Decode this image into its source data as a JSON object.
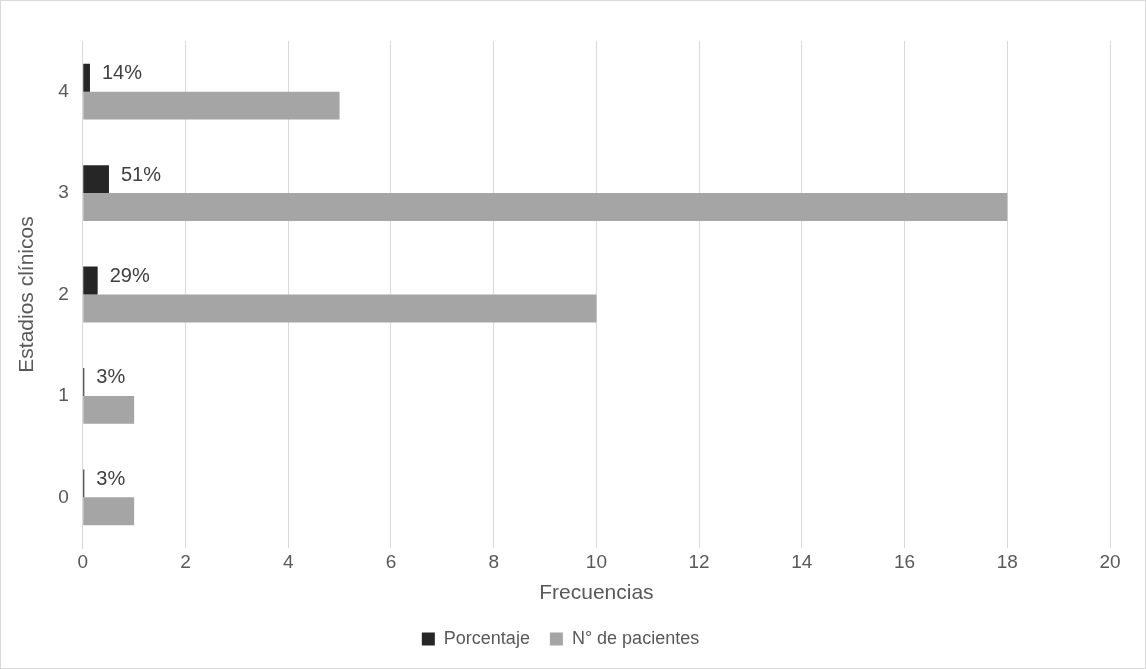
{
  "chart_data": {
    "type": "bar",
    "orientation": "horizontal",
    "xlabel": "Frecuencias",
    "ylabel": "Estadios clínicos",
    "categories": [
      "4",
      "3",
      "2",
      "1",
      "0"
    ],
    "series": [
      {
        "name": "Porcentaje",
        "color": "#262626",
        "values": [
          0.14,
          0.51,
          0.29,
          0.03,
          0.03
        ],
        "value_labels": [
          "14%",
          "51%",
          "29%",
          "3%",
          "3%"
        ]
      },
      {
        "name": "N° de pacientes",
        "color": "#a5a5a5",
        "values": [
          5,
          18,
          10,
          1,
          1
        ]
      }
    ],
    "xlim": [
      0,
      20
    ],
    "xticks": [
      0,
      2,
      4,
      6,
      8,
      10,
      12,
      14,
      16,
      18,
      20
    ],
    "grid": "x",
    "legend": "bottom"
  }
}
